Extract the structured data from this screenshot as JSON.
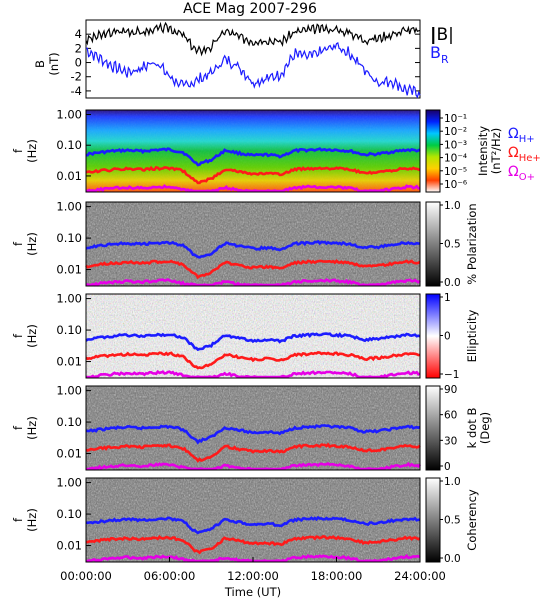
{
  "chart_data": [
    {
      "type": "line",
      "title": "ACE Mag 2007-296",
      "ylabel": "B",
      "yunit": "(nT)",
      "ylim": [
        -5,
        6
      ],
      "yticks": [
        "4",
        "2",
        "0",
        "-2",
        "-4"
      ],
      "xlim_hours": [
        0,
        24
      ],
      "series": [
        {
          "name": "|B|",
          "color": "#000000",
          "x_hours": [
            0,
            1,
            2,
            3,
            4,
            5,
            6,
            7,
            8,
            9,
            10,
            11,
            12,
            13,
            14,
            15,
            16,
            17,
            18,
            19,
            20,
            21,
            22,
            23,
            24
          ],
          "values": [
            3.2,
            3.8,
            4.3,
            4.5,
            4.2,
            4.7,
            4.9,
            3.8,
            1.5,
            2.2,
            4.5,
            3.6,
            3.0,
            3.2,
            2.9,
            4.3,
            4.6,
            4.8,
            4.6,
            4.2,
            3.2,
            3.4,
            4.0,
            4.6,
            4.4
          ]
        },
        {
          "name": "B",
          "name_subscript": "R",
          "color": "#1c1cff",
          "x_hours": [
            0,
            1,
            2,
            3,
            4,
            5,
            6,
            7,
            8,
            9,
            10,
            11,
            12,
            13,
            14,
            15,
            16,
            17,
            18,
            19,
            20,
            21,
            22,
            23,
            24
          ],
          "values": [
            1.8,
            0.6,
            -0.6,
            -1.4,
            -0.8,
            0.2,
            -2.0,
            -3.4,
            -2.5,
            -1.5,
            0.5,
            -0.6,
            -2.8,
            -2.3,
            -1.6,
            1.2,
            0.8,
            1.6,
            2.4,
            1.2,
            -1.0,
            -2.8,
            -2.6,
            -3.9,
            -4.3
          ]
        }
      ]
    },
    {
      "type": "heatmap",
      "ylabel": "f",
      "yunit": "(Hz)",
      "yscale": "log",
      "ylim": [
        0.003,
        1.4
      ],
      "yticks": [
        "1.00",
        "0.10",
        "0.01"
      ],
      "colorbar": {
        "label": "Intensity",
        "unit": "(nT²/Hz)",
        "scale": "log",
        "ticks": [
          "10⁻¹",
          "10⁻²",
          "10⁻³",
          "10⁻⁴",
          "10⁻⁵",
          "10⁻⁶"
        ],
        "colors": [
          "#1a0066",
          "#0022ff",
          "#00c8ff",
          "#00cc44",
          "#b4e600",
          "#ffd000",
          "#ff4000",
          "#ffffff"
        ]
      }
    },
    {
      "type": "heatmap",
      "ylabel": "f",
      "yunit": "(Hz)",
      "yscale": "log",
      "ylim": [
        0.003,
        1.4
      ],
      "yticks": [
        "1.00",
        "0.10",
        "0.01"
      ],
      "colorbar": {
        "label": "% Polarization",
        "ticks": [
          "1.0",
          "0.5",
          "0.0"
        ],
        "colors": [
          "#ffffff",
          "#000000"
        ]
      }
    },
    {
      "type": "heatmap",
      "ylabel": "f",
      "yunit": "(Hz)",
      "yscale": "log",
      "ylim": [
        0.003,
        1.4
      ],
      "yticks": [
        "1.00",
        "0.10",
        "0.01"
      ],
      "colorbar": {
        "label": "Ellipticity",
        "ticks": [
          "1",
          "0",
          "−1"
        ],
        "colors": [
          "#0000ff",
          "#ffffff",
          "#ff0000"
        ]
      }
    },
    {
      "type": "heatmap",
      "ylabel": "f",
      "yunit": "(Hz)",
      "yscale": "log",
      "ylim": [
        0.003,
        1.4
      ],
      "yticks": [
        "1.00",
        "0.10",
        "0.01"
      ],
      "colorbar": {
        "label": "k dot B",
        "unit": "(Deg)",
        "ticks": [
          "90",
          "60",
          "30",
          "0"
        ],
        "colors": [
          "#ffffff",
          "#000000"
        ]
      }
    },
    {
      "type": "heatmap",
      "ylabel": "f",
      "yunit": "(Hz)",
      "yscale": "log",
      "ylim": [
        0.003,
        1.4
      ],
      "yticks": [
        "1.00",
        "0.10",
        "0.01"
      ],
      "xlabel": "Time (UT)",
      "xticks": [
        "00:00:00",
        "06:00:00",
        "12:00:00",
        "18:00:00",
        "24:00:00"
      ],
      "colorbar": {
        "label": "Coherency",
        "ticks": [
          "1.0",
          "0.5",
          "0.0"
        ],
        "colors": [
          "#ffffff",
          "#000000"
        ]
      }
    }
  ],
  "gyrofrequency_lines": {
    "x_hours": [
      0,
      1,
      2,
      3,
      4,
      5,
      6,
      7,
      8,
      9,
      10,
      11,
      12,
      13,
      14,
      15,
      16,
      17,
      18,
      19,
      20,
      21,
      22,
      23,
      24
    ],
    "lines": [
      {
        "name": "Ω",
        "name_subscript": "H+",
        "color": "#1c1cff",
        "values": [
          0.05,
          0.058,
          0.065,
          0.068,
          0.064,
          0.07,
          0.072,
          0.058,
          0.024,
          0.033,
          0.068,
          0.055,
          0.046,
          0.049,
          0.044,
          0.066,
          0.07,
          0.073,
          0.07,
          0.064,
          0.049,
          0.052,
          0.061,
          0.07,
          0.067
        ]
      },
      {
        "name": "Ω",
        "name_subscript": "He+",
        "color": "#ff1a1a",
        "values": [
          0.0125,
          0.0145,
          0.016,
          0.017,
          0.016,
          0.0175,
          0.018,
          0.0145,
          0.006,
          0.008,
          0.017,
          0.0138,
          0.0115,
          0.0122,
          0.011,
          0.0165,
          0.0175,
          0.0182,
          0.0175,
          0.016,
          0.0122,
          0.013,
          0.0152,
          0.0175,
          0.0168
        ]
      },
      {
        "name": "Ω",
        "name_subscript": "O+",
        "color": "#e600e6",
        "values": [
          0.0031,
          0.0036,
          0.004,
          0.0042,
          0.004,
          0.0044,
          0.0045,
          0.0036,
          0.0031,
          0.0031,
          0.0042,
          0.0034,
          0.0031,
          0.0031,
          0.0031,
          0.0041,
          0.0044,
          0.0045,
          0.0044,
          0.004,
          0.0031,
          0.0032,
          0.0038,
          0.0044,
          0.0042
        ]
      }
    ]
  }
}
